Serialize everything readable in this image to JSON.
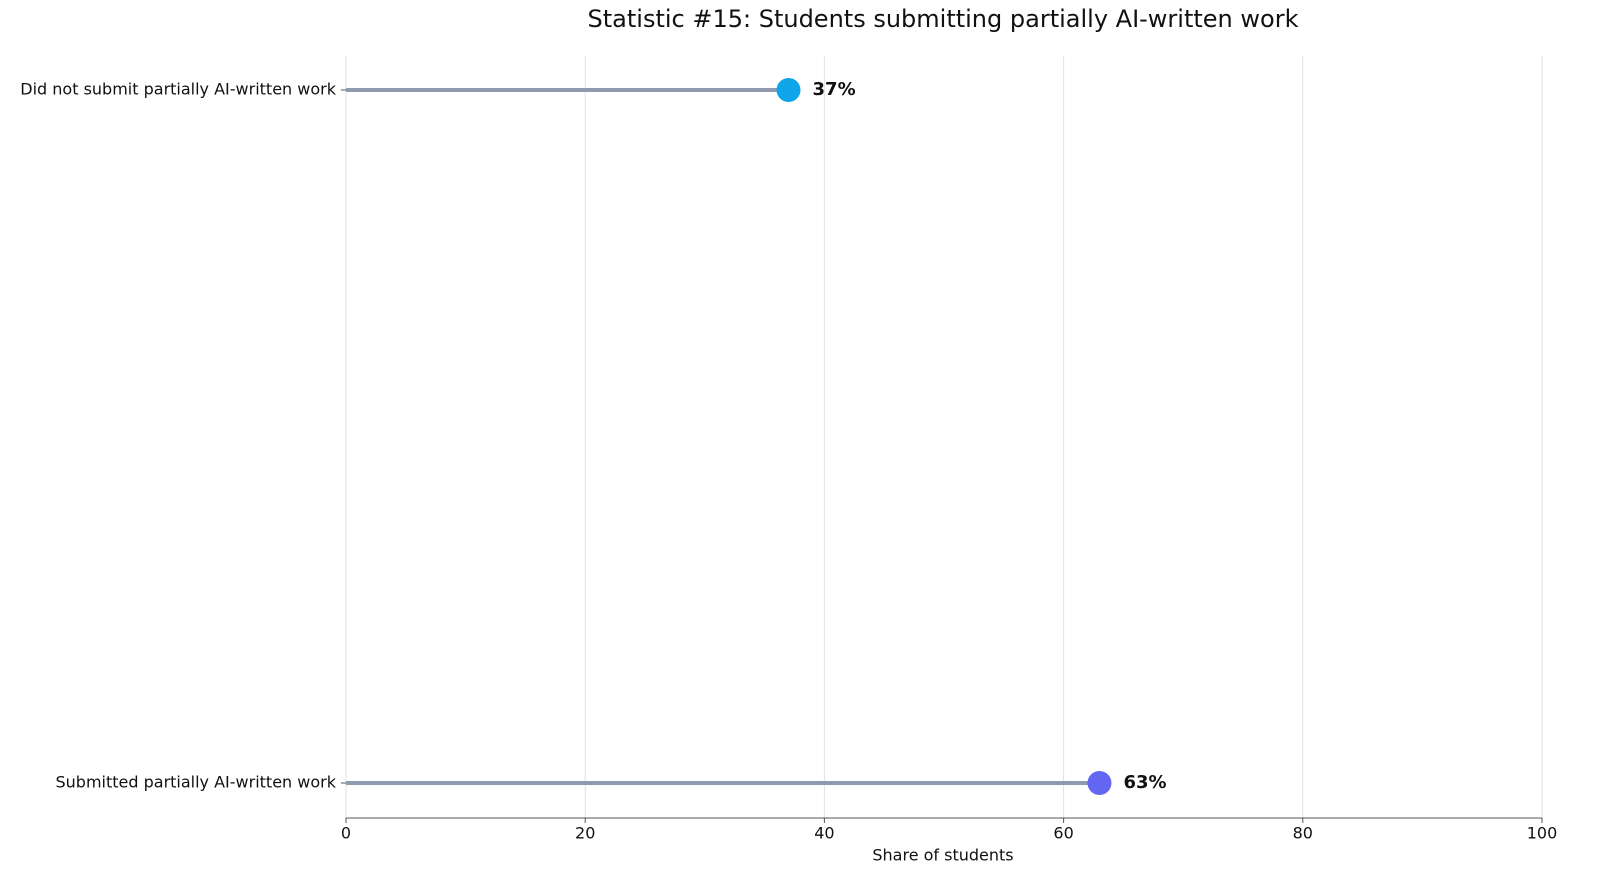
{
  "chart_data": {
    "type": "lollipop",
    "title": "Statistic #15: Students submitting partially AI-written work",
    "x_label": "Share of students",
    "categories": [
      "Did not submit partially AI-written work",
      "Submitted partially AI-written work"
    ],
    "values": [
      37,
      63
    ],
    "value_labels": [
      "37%",
      "63%"
    ],
    "colors": [
      "#0ea5e9",
      "#6366f1"
    ],
    "stem_color": "#8f9ab0",
    "xlim": [
      0,
      100
    ],
    "xticks": [
      0,
      20,
      40,
      60,
      80,
      100
    ],
    "grid": true
  }
}
